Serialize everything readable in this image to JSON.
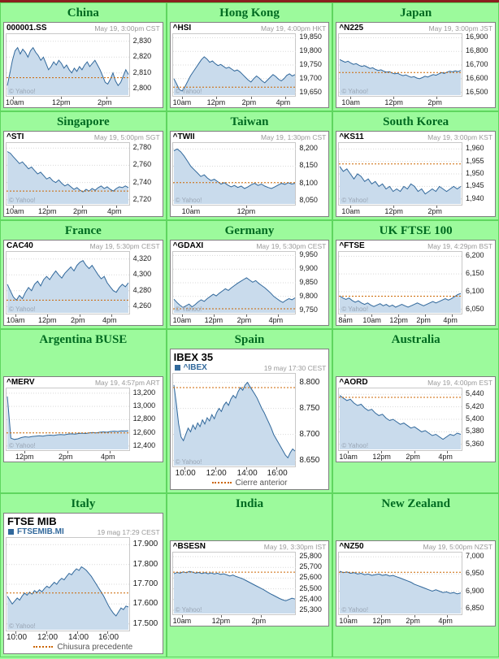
{
  "page": {
    "top_strip_color": "#8b1f1f",
    "background_color": "#9cfa9c"
  },
  "theme": {
    "header_color": "#006b21",
    "line": "#31689b",
    "fill": "#c9dbec",
    "prev_close": "#cc6600",
    "grid_line": "#d9d9d9"
  },
  "chart_data": [
    {
      "header": "China",
      "ticker": "000001.SS",
      "datetime": "May 19, 3:00pm CST",
      "watermark": "© Yahoo!",
      "type": "area",
      "size": "small",
      "ylim": [
        2796,
        2834
      ],
      "prev_close": 2807,
      "ytick_values": [
        2830,
        2820,
        2810,
        2800
      ],
      "ytick_labels": [
        "2,830",
        "2,820",
        "2,810",
        "2,800"
      ],
      "xtick_labels": [
        "10am",
        "12pm",
        "2pm"
      ],
      "xtick_pos": [
        0.06,
        0.45,
        0.82
      ],
      "values": [
        2802,
        2810,
        2818,
        2824,
        2826,
        2822,
        2825,
        2823,
        2820,
        2824,
        2826,
        2823,
        2821,
        2818,
        2820,
        2816,
        2812,
        2814,
        2817,
        2815,
        2818,
        2816,
        2813,
        2815,
        2812,
        2810,
        2813,
        2811,
        2814,
        2812,
        2815,
        2817,
        2814,
        2816,
        2818,
        2815,
        2812,
        2808,
        2804,
        2803,
        2806,
        2810,
        2805,
        2802,
        2804,
        2808,
        2812,
        2809
      ]
    },
    {
      "header": "Hong Kong",
      "ticker": "^HSI",
      "datetime": "May 19, 4:00pm HKT",
      "watermark": "© Yahoo!",
      "type": "area",
      "size": "small",
      "ylim": [
        19640,
        19860
      ],
      "prev_close": 19669,
      "ytick_values": [
        19850,
        19800,
        19750,
        19700,
        19650
      ],
      "ytick_labels": [
        "19,850",
        "19,800",
        "19,750",
        "19,700",
        "19,650"
      ],
      "xtick_labels": [
        "10am",
        "12pm",
        "2pm",
        "4pm"
      ],
      "xtick_pos": [
        0.08,
        0.36,
        0.64,
        0.92
      ],
      "values": [
        19700,
        19680,
        19660,
        19655,
        19670,
        19690,
        19710,
        19725,
        19740,
        19755,
        19770,
        19780,
        19772,
        19760,
        19765,
        19755,
        19748,
        19752,
        19745,
        19738,
        19742,
        19735,
        19728,
        19732,
        19725,
        19715,
        19705,
        19695,
        19688,
        19700,
        19710,
        19702,
        19692,
        19685,
        19695,
        19705,
        19715,
        19708,
        19698,
        19692,
        19700,
        19712,
        19718,
        19710,
        19715
      ]
    },
    {
      "header": "Japan",
      "ticker": "^N225",
      "datetime": "May 19, 3:00pm JST",
      "watermark": "© Yahoo!",
      "type": "area",
      "size": "small",
      "ylim": [
        16480,
        16920
      ],
      "prev_close": 16645,
      "ytick_values": [
        16900,
        16800,
        16700,
        16600,
        16500
      ],
      "ytick_labels": [
        "16,900",
        "16,800",
        "16,700",
        "16,600",
        "16,500"
      ],
      "xtick_labels": [
        "10am",
        "12pm",
        "2pm"
      ],
      "xtick_pos": [
        0.1,
        0.45,
        0.8
      ],
      "values": [
        16740,
        16730,
        16720,
        16728,
        16715,
        16705,
        16710,
        16698,
        16690,
        16695,
        16685,
        16675,
        16680,
        16668,
        16660,
        16665,
        16655,
        16648,
        16652,
        16642,
        16635,
        16640,
        16630,
        16622,
        16628,
        16618,
        16610,
        16615,
        16605,
        16600,
        16608,
        16618,
        16612,
        16622,
        16630,
        16625,
        16635,
        16645,
        16638,
        16648,
        16655,
        16650,
        16658,
        16652,
        16660
      ]
    },
    {
      "header": "Singapore",
      "ticker": "^STI",
      "datetime": "May 19, 5:00pm SGT",
      "watermark": "© Yahoo!",
      "type": "area",
      "size": "small",
      "ylim": [
        2715,
        2785
      ],
      "prev_close": 2730,
      "ytick_values": [
        2780,
        2760,
        2740,
        2720
      ],
      "ytick_labels": [
        "2,780",
        "2,760",
        "2,740",
        "2,720"
      ],
      "xtick_labels": [
        "10am",
        "12pm",
        "2pm",
        "4pm"
      ],
      "xtick_pos": [
        0.06,
        0.34,
        0.62,
        0.9
      ],
      "values": [
        2776,
        2774,
        2770,
        2766,
        2762,
        2764,
        2760,
        2756,
        2758,
        2754,
        2750,
        2752,
        2748,
        2744,
        2746,
        2742,
        2740,
        2743,
        2739,
        2736,
        2738,
        2735,
        2732,
        2734,
        2731,
        2729,
        2732,
        2730,
        2733,
        2731,
        2734,
        2736,
        2733,
        2735,
        2732,
        2730,
        2733,
        2735,
        2734,
        2736,
        2734
      ]
    },
    {
      "header": "Taiwan",
      "ticker": "^TWII",
      "datetime": "May 19, 1:30pm CST",
      "watermark": "© Yahoo!",
      "type": "area",
      "size": "small",
      "ylim": [
        8040,
        8215
      ],
      "prev_close": 8102,
      "ytick_values": [
        8200,
        8150,
        8100,
        8050
      ],
      "ytick_labels": [
        "8,200",
        "8,150",
        "8,100",
        "8,050"
      ],
      "xtick_labels": [
        "10am",
        "12pm"
      ],
      "xtick_pos": [
        0.15,
        0.6
      ],
      "values": [
        8195,
        8200,
        8192,
        8180,
        8165,
        8150,
        8140,
        8130,
        8120,
        8125,
        8115,
        8108,
        8112,
        8105,
        8098,
        8102,
        8095,
        8090,
        8094,
        8088,
        8092,
        8085,
        8090,
        8096,
        8100,
        8094,
        8098,
        8092,
        8088,
        8085,
        8090,
        8095,
        8100,
        8097,
        8102,
        8098,
        8100
      ]
    },
    {
      "header": "South Korea",
      "ticker": "^KS11",
      "datetime": "May 19, 3:00pm KST",
      "watermark": "© Yahoo!",
      "type": "area",
      "size": "small",
      "ylim": [
        1938,
        1962
      ],
      "prev_close": 1954,
      "ytick_values": [
        1960,
        1955,
        1950,
        1945,
        1940
      ],
      "ytick_labels": [
        "1,960",
        "1,955",
        "1,950",
        "1,945",
        "1,940"
      ],
      "xtick_labels": [
        "10am",
        "12pm",
        "2pm"
      ],
      "xtick_pos": [
        0.1,
        0.45,
        0.8
      ],
      "values": [
        1953,
        1951,
        1952,
        1950,
        1948,
        1950,
        1949,
        1947,
        1948,
        1946,
        1947,
        1945,
        1946,
        1944,
        1945,
        1943,
        1944,
        1943,
        1945,
        1944,
        1946,
        1945,
        1943,
        1944,
        1942,
        1943,
        1944,
        1943,
        1945,
        1944,
        1943,
        1944,
        1945,
        1944,
        1945
      ]
    },
    {
      "header": "France",
      "ticker": "CAC40",
      "datetime": "May 19, 5:30pm CEST",
      "watermark": "© Yahoo!",
      "type": "area",
      "size": "small",
      "ylim": [
        4252,
        4328
      ],
      "prev_close": 4268,
      "ytick_values": [
        4320,
        4300,
        4280,
        4260
      ],
      "ytick_labels": [
        "4,320",
        "4,300",
        "4,280",
        "4,260"
      ],
      "xtick_labels": [
        "10am",
        "12pm",
        "2pm",
        "4pm"
      ],
      "xtick_pos": [
        0.08,
        0.34,
        0.6,
        0.86
      ],
      "values": [
        4288,
        4280,
        4272,
        4268,
        4274,
        4270,
        4278,
        4284,
        4280,
        4288,
        4292,
        4286,
        4294,
        4298,
        4294,
        4300,
        4305,
        4300,
        4296,
        4302,
        4306,
        4310,
        4305,
        4312,
        4316,
        4318,
        4312,
        4308,
        4312,
        4306,
        4300,
        4295,
        4298,
        4290,
        4285,
        4280,
        4278,
        4284,
        4288,
        4285,
        4290
      ]
    },
    {
      "header": "Germany",
      "ticker": "^GDAXI",
      "datetime": "May 19, 5:30pm CEST",
      "watermark": "© Yahoo!",
      "type": "area",
      "size": "small",
      "ylim": [
        9740,
        9960
      ],
      "prev_close": 9755,
      "ytick_values": [
        9950,
        9900,
        9850,
        9800,
        9750
      ],
      "ytick_labels": [
        "9,950",
        "9,900",
        "9,850",
        "9,800",
        "9,750"
      ],
      "xtick_labels": [
        "10am",
        "12pm",
        "2pm",
        "4pm"
      ],
      "xtick_pos": [
        0.08,
        0.34,
        0.6,
        0.86
      ],
      "values": [
        9790,
        9778,
        9768,
        9760,
        9766,
        9772,
        9762,
        9770,
        9780,
        9788,
        9782,
        9792,
        9800,
        9808,
        9802,
        9812,
        9820,
        9828,
        9822,
        9832,
        9840,
        9848,
        9855,
        9862,
        9868,
        9860,
        9852,
        9858,
        9848,
        9840,
        9832,
        9822,
        9812,
        9800,
        9792,
        9784,
        9778,
        9786,
        9792,
        9788,
        9795
      ]
    },
    {
      "header": "UK FTSE 100",
      "ticker": "^FTSE",
      "datetime": "May 19, 4:29pm BST",
      "watermark": "© Yahoo!",
      "type": "area",
      "size": "small",
      "ylim": [
        6040,
        6210
      ],
      "prev_close": 6087,
      "ytick_values": [
        6200,
        6150,
        6100,
        6050
      ],
      "ytick_labels": [
        "6,200",
        "6,150",
        "6,100",
        "6,050"
      ],
      "xtick_labels": [
        "8am",
        "10am",
        "12pm",
        "2pm",
        "4pm"
      ],
      "xtick_pos": [
        0.05,
        0.27,
        0.49,
        0.71,
        0.93
      ],
      "values": [
        6088,
        6082,
        6078,
        6082,
        6075,
        6070,
        6074,
        6068,
        6064,
        6068,
        6062,
        6058,
        6062,
        6066,
        6060,
        6064,
        6058,
        6062,
        6056,
        6060,
        6064,
        6060,
        6056,
        6060,
        6064,
        6068,
        6064,
        6060,
        6064,
        6068,
        6072,
        6068,
        6072,
        6076,
        6080,
        6076,
        6080,
        6086,
        6092,
        6095
      ]
    },
    {
      "header": "Argentina BUSE",
      "ticker": "^MERV",
      "datetime": "May 19, 4:57pm ART",
      "watermark": "© Yahoo!",
      "type": "area",
      "size": "small",
      "ylim": [
        12350,
        13260
      ],
      "prev_close": 12600,
      "ytick_values": [
        13200,
        13000,
        12800,
        12600,
        12400
      ],
      "ytick_labels": [
        "13,200",
        "13,000",
        "12,800",
        "12,600",
        "12,400"
      ],
      "xtick_labels": [
        "12pm",
        "2pm",
        "4pm"
      ],
      "xtick_pos": [
        0.15,
        0.5,
        0.85
      ],
      "values": [
        13150,
        12520,
        12500,
        12510,
        12530,
        12540,
        12535,
        12545,
        12550,
        12555,
        12550,
        12560,
        12565,
        12560,
        12570,
        12575,
        12570,
        12580,
        12585,
        12580,
        12590,
        12595,
        12590,
        12600,
        12605,
        12600,
        12610,
        12615,
        12610,
        12620,
        12625,
        12620,
        12630,
        12628,
        12632
      ]
    },
    {
      "header": "Spain",
      "big_title": "IBEX 35",
      "legend": "^IBEX",
      "datetime": "19 may 17:30 CEST",
      "bottom_legend": "Cierre anterior",
      "watermark": "© Yahoo!",
      "type": "area",
      "size": "big",
      "ylim": [
        8640,
        8815
      ],
      "prev_close": 8790,
      "ytick_values": [
        8800,
        8750,
        8700,
        8650
      ],
      "ytick_labels": [
        "8.800",
        "8.750",
        "8.700",
        "8.650"
      ],
      "xtick_labels": [
        "10:00",
        "12:00",
        "14:00",
        "16:00"
      ],
      "xtick_pos": [
        0.1,
        0.35,
        0.6,
        0.85
      ],
      "values": [
        8795,
        8760,
        8720,
        8695,
        8688,
        8700,
        8712,
        8705,
        8718,
        8710,
        8722,
        8715,
        8728,
        8720,
        8732,
        8726,
        8738,
        8730,
        8742,
        8750,
        8744,
        8756,
        8762,
        8756,
        8768,
        8775,
        8770,
        8782,
        8790,
        8785,
        8795,
        8800,
        8792,
        8785,
        8778,
        8770,
        8760,
        8750,
        8742,
        8732,
        8722,
        8712,
        8700,
        8692,
        8684,
        8676,
        8668,
        8660,
        8655,
        8665,
        8672,
        8668
      ]
    },
    {
      "header": "Australia",
      "ticker": "^AORD",
      "datetime": "May 19, 4:00pm EST",
      "watermark": "© Yahoo!",
      "type": "area",
      "size": "small",
      "ylim": [
        5352,
        5448
      ],
      "prev_close": 5435,
      "ytick_values": [
        5440,
        5420,
        5400,
        5380,
        5360
      ],
      "ytick_labels": [
        "5,440",
        "5,420",
        "5,400",
        "5,380",
        "5,360"
      ],
      "xtick_labels": [
        "10am",
        "12pm",
        "2pm",
        "4pm"
      ],
      "xtick_pos": [
        0.08,
        0.35,
        0.62,
        0.89
      ],
      "values": [
        5438,
        5434,
        5430,
        5432,
        5426,
        5422,
        5424,
        5418,
        5414,
        5416,
        5410,
        5406,
        5408,
        5402,
        5398,
        5400,
        5396,
        5392,
        5394,
        5390,
        5386,
        5388,
        5384,
        5380,
        5382,
        5378,
        5374,
        5376,
        5372,
        5368,
        5372,
        5376,
        5374,
        5378,
        5376
      ]
    },
    {
      "header": "Italy",
      "big_title": "FTSE MIB",
      "legend": "FTSEMIB.MI",
      "datetime": "19 mag 17:29 CEST",
      "bottom_legend": "Chiusura precedente",
      "watermark": "© Yahoo!",
      "type": "area",
      "size": "big",
      "ylim": [
        17470,
        17930
      ],
      "prev_close": 17656,
      "ytick_values": [
        17900,
        17800,
        17700,
        17600,
        17500
      ],
      "ytick_labels": [
        "17.900",
        "17.800",
        "17.700",
        "17.600",
        "17.500"
      ],
      "xtick_labels": [
        "10:00",
        "12:00",
        "14:00",
        "16:00"
      ],
      "xtick_pos": [
        0.08,
        0.33,
        0.58,
        0.83
      ],
      "values": [
        17640,
        17620,
        17600,
        17615,
        17630,
        17620,
        17640,
        17655,
        17645,
        17660,
        17650,
        17668,
        17658,
        17672,
        17662,
        17678,
        17690,
        17682,
        17696,
        17710,
        17700,
        17718,
        17730,
        17722,
        17740,
        17755,
        17748,
        17765,
        17778,
        17770,
        17788,
        17780,
        17770,
        17755,
        17740,
        17720,
        17700,
        17680,
        17660,
        17640,
        17615,
        17590,
        17570,
        17552,
        17540,
        17560,
        17580,
        17572,
        17590,
        17585
      ]
    },
    {
      "header": "India",
      "ticker": "^BSESN",
      "datetime": "May 19, 3:30pm IST",
      "watermark": "© Yahoo!",
      "type": "area",
      "size": "small",
      "ylim": [
        25270,
        25830
      ],
      "prev_close": 25655,
      "ytick_values": [
        25800,
        25700,
        25600,
        25500,
        25400,
        25300
      ],
      "ytick_labels": [
        "25,800",
        "25,700",
        "25,600",
        "25,500",
        "25,400",
        "25,300"
      ],
      "xtick_labels": [
        "10am",
        "12pm",
        "2pm"
      ],
      "xtick_pos": [
        0.08,
        0.4,
        0.72
      ],
      "values": [
        25640,
        25652,
        25645,
        25658,
        25650,
        25662,
        25655,
        25645,
        25652,
        25642,
        25650,
        25640,
        25648,
        25638,
        25645,
        25635,
        25640,
        25630,
        25620,
        25628,
        25615,
        25605,
        25595,
        25580,
        25565,
        25550,
        25535,
        25520,
        25505,
        25490,
        25472,
        25455,
        25440,
        25425,
        25410,
        25398,
        25388,
        25400,
        25412,
        25405
      ]
    },
    {
      "header": "New Zealand",
      "ticker": "^NZ50",
      "datetime": "May 19, 5:00pm NZST",
      "watermark": "© Yahoo!",
      "type": "area",
      "size": "small",
      "ylim": [
        6835,
        7010
      ],
      "prev_close": 6955,
      "ytick_values": [
        7000,
        6950,
        6900,
        6850
      ],
      "ytick_labels": [
        "7,000",
        "6,950",
        "6,900",
        "6,850"
      ],
      "xtick_labels": [
        "10am",
        "12pm",
        "2pm",
        "4pm"
      ],
      "xtick_pos": [
        0.08,
        0.35,
        0.62,
        0.89
      ],
      "values": [
        6958,
        6954,
        6956,
        6952,
        6954,
        6950,
        6952,
        6948,
        6950,
        6946,
        6948,
        6950,
        6946,
        6948,
        6944,
        6946,
        6942,
        6938,
        6934,
        6930,
        6926,
        6920,
        6916,
        6912,
        6908,
        6904,
        6900,
        6904,
        6900,
        6896,
        6898,
        6894,
        6896,
        6892,
        6895
      ]
    }
  ]
}
